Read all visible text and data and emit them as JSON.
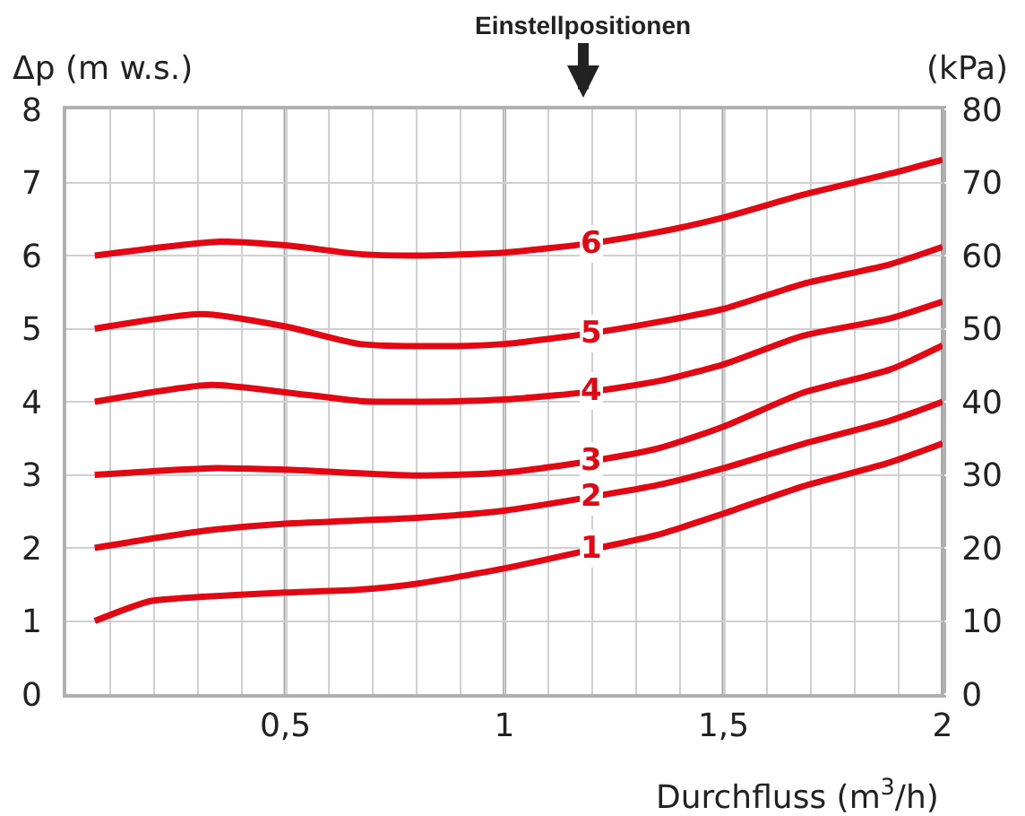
{
  "chart_data": {
    "type": "line",
    "xlabel": "Durchfluss (m$^{3}$/h)",
    "ylabel": "Δp (m w.s.)",
    "y2label": "(kPa)",
    "annotations": [
      "Einstellpositionen"
    ],
    "xlim": [
      0,
      2
    ],
    "xticks": [
      {
        "value": 0.1,
        "label": null
      },
      {
        "value": 0.2,
        "label": null
      },
      {
        "value": 0.3,
        "label": null
      },
      {
        "value": 0.4,
        "label": null
      },
      {
        "value": 0.5,
        "label": "0,5"
      },
      {
        "value": 0.6,
        "label": null
      },
      {
        "value": 0.7,
        "label": null
      },
      {
        "value": 0.8,
        "label": null
      },
      {
        "value": 0.9,
        "label": null
      },
      1,
      {
        "value": 1.1,
        "label": null
      },
      {
        "value": 1.2,
        "label": null
      },
      {
        "value": 1.3,
        "label": null
      },
      {
        "value": 1.4,
        "label": null
      },
      {
        "value": 1.5,
        "label": "1,5"
      },
      {
        "value": 1.6,
        "label": null
      },
      {
        "value": 1.7,
        "label": null
      },
      {
        "value": 1.8,
        "label": null
      },
      {
        "value": 1.9,
        "label": null
      },
      2
    ],
    "ylim": [
      0,
      8
    ],
    "yticks": [
      0,
      1,
      2,
      3,
      4,
      5,
      6,
      7,
      8
    ],
    "y2lim": [
      0,
      80
    ],
    "y2ticks": [
      0,
      10,
      20,
      30,
      40,
      50,
      60,
      70,
      80
    ],
    "grid": true,
    "legend": false,
    "marker": "none",
    "line_style": "solid",
    "series": [
      {
        "name": "1",
        "color": "#e30613",
        "x": [
          0.065,
          0.19,
          0.31,
          0.5,
          0.67,
          0.8,
          1.0,
          1.2,
          1.35,
          1.5,
          1.68,
          1.88,
          2.0
        ],
        "values": [
          1.0,
          1.27,
          1.33,
          1.39,
          1.43,
          1.51,
          1.72,
          1.98,
          2.18,
          2.47,
          2.84,
          3.17,
          3.43
        ]
      },
      {
        "name": "2",
        "color": "#e30613",
        "x": [
          0.065,
          0.31,
          0.5,
          0.8,
          1.0,
          1.2,
          1.35,
          1.5,
          1.68,
          1.88,
          2.0
        ],
        "values": [
          2.0,
          2.23,
          2.33,
          2.41,
          2.51,
          2.7,
          2.86,
          3.09,
          3.42,
          3.74,
          4.0
        ]
      },
      {
        "name": "3",
        "color": "#e30613",
        "x": [
          0.065,
          0.33,
          0.5,
          0.8,
          1.0,
          1.2,
          1.35,
          1.5,
          1.68,
          1.88,
          2.0
        ],
        "values": [
          3.0,
          3.09,
          3.07,
          2.99,
          3.03,
          3.19,
          3.36,
          3.66,
          4.12,
          4.44,
          4.77
        ]
      },
      {
        "name": "4",
        "color": "#e30613",
        "x": [
          0.065,
          0.33,
          0.5,
          0.67,
          0.8,
          1.0,
          1.2,
          1.35,
          1.5,
          1.68,
          1.88,
          2.0
        ],
        "values": [
          4.0,
          4.23,
          4.13,
          4.01,
          4.0,
          4.03,
          4.14,
          4.28,
          4.51,
          4.9,
          5.14,
          5.37
        ]
      },
      {
        "name": "5",
        "color": "#e30613",
        "x": [
          0.065,
          0.31,
          0.5,
          0.67,
          0.86,
          1.0,
          1.2,
          1.35,
          1.5,
          1.68,
          1.88,
          2.0
        ],
        "values": [
          5.0,
          5.2,
          5.03,
          4.79,
          4.76,
          4.79,
          4.94,
          5.09,
          5.27,
          5.61,
          5.88,
          6.12
        ]
      },
      {
        "name": "6",
        "color": "#e30613",
        "x": [
          0.065,
          0.35,
          0.5,
          0.67,
          0.8,
          1.0,
          1.2,
          1.35,
          1.5,
          1.68,
          1.88,
          2.0
        ],
        "values": [
          6.0,
          6.19,
          6.14,
          6.02,
          6.0,
          6.04,
          6.17,
          6.32,
          6.52,
          6.83,
          7.12,
          7.31
        ]
      }
    ]
  }
}
